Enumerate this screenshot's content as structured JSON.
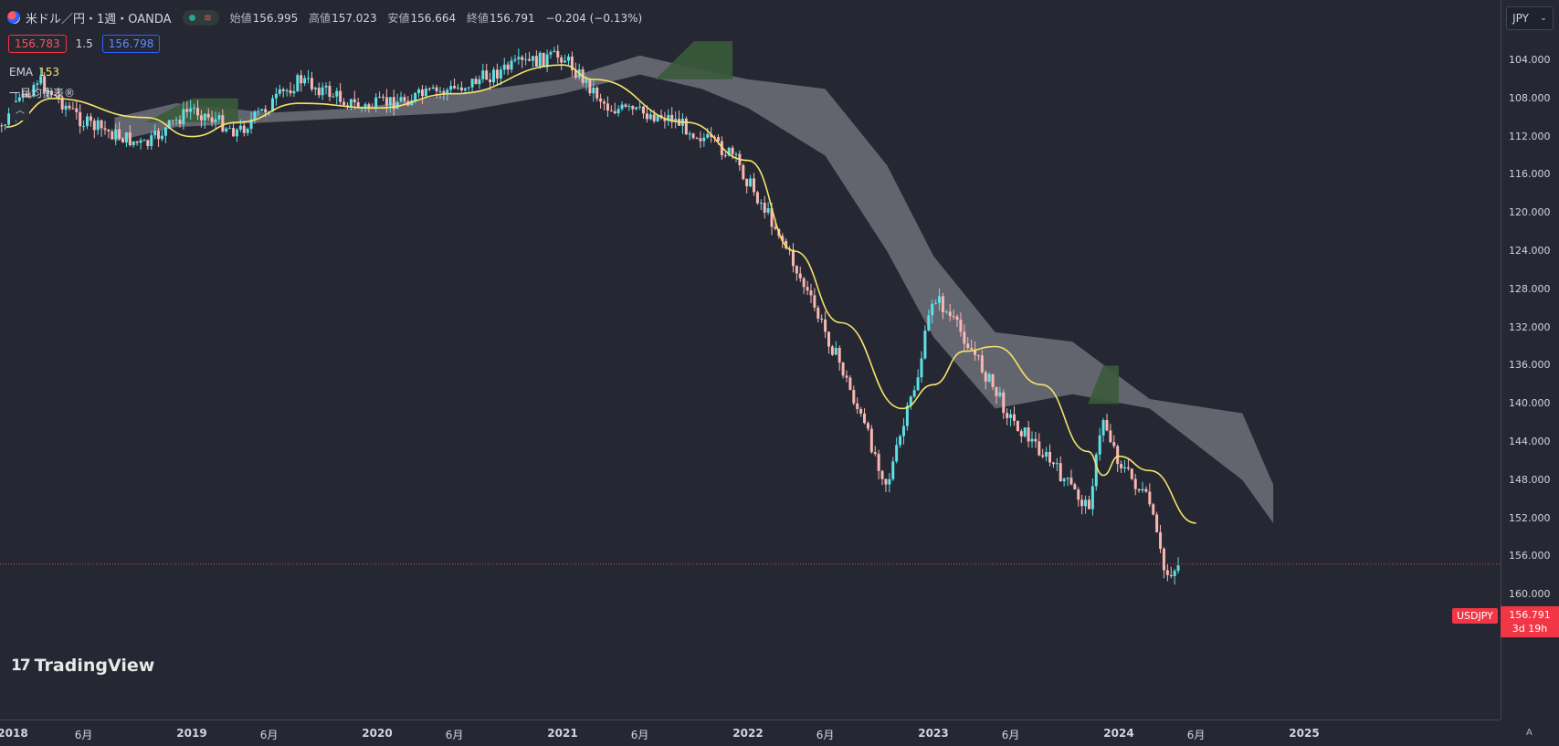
{
  "header": {
    "symbol_title": "米ドル／円・1週・OANDA",
    "ohlc": [
      {
        "label": "始値",
        "value": "156.995"
      },
      {
        "label": "高値",
        "value": "157.023"
      },
      {
        "label": "安値",
        "value": "156.664"
      },
      {
        "label": "終値",
        "value": "156.791"
      }
    ],
    "change": "−0.204 (−0.13%)"
  },
  "quote": {
    "sell": "156.783",
    "spread": "1.5",
    "buy": "156.798"
  },
  "indicators": {
    "ema_label": "EMA",
    "ema_value": "153",
    "ichimoku_label": "一目均衡表®"
  },
  "collapse_icon": "chevron-up-icon",
  "currency_selector": {
    "label": "JPY",
    "icon": "chevron-down-icon"
  },
  "brand": {
    "logo_mark": "17",
    "name": "TradingView"
  },
  "price_badge": {
    "symbol": "USDJPY",
    "price": "156.791",
    "countdown": "3d 19h"
  },
  "axis_mode_label": "A",
  "colors": {
    "background": "#252833",
    "candle_up": "#f8b7b3",
    "candle_down": "#5de0e6",
    "ema": "#f7e26b",
    "cloud_bull": "#3a5a3a",
    "cloud_bear": "#6e7079",
    "last_price": "#f23645"
  },
  "chart_data": {
    "type": "candlestick",
    "title": "米ドル／円・1週・OANDA",
    "price_axis": {
      "inverted": true,
      "ticks": [
        "104.000",
        "108.000",
        "112.000",
        "116.000",
        "120.000",
        "124.000",
        "128.000",
        "132.000",
        "136.000",
        "140.000",
        "144.000",
        "148.000",
        "152.000",
        "156.000",
        "160.000"
      ]
    },
    "time_axis": {
      "ticks": [
        {
          "label": "2018",
          "date": "2018-01",
          "bold": true
        },
        {
          "label": "6月",
          "date": "2018-06"
        },
        {
          "label": "2019",
          "date": "2019-01",
          "bold": true
        },
        {
          "label": "6月",
          "date": "2019-06"
        },
        {
          "label": "2020",
          "date": "2020-01",
          "bold": true
        },
        {
          "label": "6月",
          "date": "2020-06"
        },
        {
          "label": "2021",
          "date": "2021-01",
          "bold": true
        },
        {
          "label": "6月",
          "date": "2021-06"
        },
        {
          "label": "2022",
          "date": "2022-01",
          "bold": true
        },
        {
          "label": "6月",
          "date": "2022-06"
        },
        {
          "label": "2023",
          "date": "2023-01",
          "bold": true
        },
        {
          "label": "6月",
          "date": "2023-06"
        },
        {
          "label": "2024",
          "date": "2024-01",
          "bold": true
        },
        {
          "label": "6月",
          "date": "2024-06"
        },
        {
          "label": "2025",
          "date": "2025-01",
          "bold": true
        }
      ]
    },
    "price_path": [
      {
        "date": "2017-12",
        "price": 112.5
      },
      {
        "date": "2018-03",
        "price": 106.0
      },
      {
        "date": "2018-06",
        "price": 110.5
      },
      {
        "date": "2018-10",
        "price": 113.0
      },
      {
        "date": "2019-01",
        "price": 109.0
      },
      {
        "date": "2019-04",
        "price": 111.5
      },
      {
        "date": "2019-08",
        "price": 106.0
      },
      {
        "date": "2019-12",
        "price": 109.0
      },
      {
        "date": "2020-03",
        "price": 108.0
      },
      {
        "date": "2020-06",
        "price": 107.0
      },
      {
        "date": "2020-10",
        "price": 104.5
      },
      {
        "date": "2021-01",
        "price": 103.5
      },
      {
        "date": "2021-04",
        "price": 109.0
      },
      {
        "date": "2021-08",
        "price": 110.0
      },
      {
        "date": "2021-12",
        "price": 114.0
      },
      {
        "date": "2022-03",
        "price": 122.0
      },
      {
        "date": "2022-05",
        "price": 129.0
      },
      {
        "date": "2022-07",
        "price": 136.0
      },
      {
        "date": "2022-10",
        "price": 148.5
      },
      {
        "date": "2022-12",
        "price": 137.0
      },
      {
        "date": "2023-01",
        "price": 128.5
      },
      {
        "date": "2023-03",
        "price": 133.0
      },
      {
        "date": "2023-06",
        "price": 141.5
      },
      {
        "date": "2023-08",
        "price": 145.0
      },
      {
        "date": "2023-11",
        "price": 151.0
      },
      {
        "date": "2023-12",
        "price": 141.5
      },
      {
        "date": "2024-01",
        "price": 146.0
      },
      {
        "date": "2024-03",
        "price": 150.5
      },
      {
        "date": "2024-04",
        "price": 158.0
      },
      {
        "date": "2024-05",
        "price": 156.8
      }
    ],
    "ema": {
      "name": "EMA",
      "period": 153,
      "points": [
        {
          "date": "2018-01",
          "price": 111.0
        },
        {
          "date": "2018-04",
          "price": 108.0
        },
        {
          "date": "2018-10",
          "price": 110.0
        },
        {
          "date": "2019-01",
          "price": 112.0
        },
        {
          "date": "2019-04",
          "price": 110.5
        },
        {
          "date": "2019-08",
          "price": 108.5
        },
        {
          "date": "2020-01",
          "price": 109.0
        },
        {
          "date": "2020-06",
          "price": 107.5
        },
        {
          "date": "2021-01",
          "price": 104.5
        },
        {
          "date": "2021-03",
          "price": 106.0
        },
        {
          "date": "2021-09",
          "price": 110.5
        },
        {
          "date": "2022-01",
          "price": 114.5
        },
        {
          "date": "2022-04",
          "price": 124.0
        },
        {
          "date": "2022-07",
          "price": 131.5
        },
        {
          "date": "2022-11",
          "price": 140.5
        },
        {
          "date": "2023-01",
          "price": 138.0
        },
        {
          "date": "2023-03",
          "price": 134.5
        },
        {
          "date": "2023-05",
          "price": 134.0
        },
        {
          "date": "2023-08",
          "price": 138.0
        },
        {
          "date": "2023-11",
          "price": 145.0
        },
        {
          "date": "2023-12",
          "price": 147.5
        },
        {
          "date": "2024-01",
          "price": 145.5
        },
        {
          "date": "2024-03",
          "price": 147.0
        },
        {
          "date": "2024-06",
          "price": 152.5
        }
      ]
    },
    "ichimoku_cloud": {
      "name": "一目均衡表",
      "upper": [
        {
          "date": "2018-08",
          "price": 110.0
        },
        {
          "date": "2018-12",
          "price": 108.5
        },
        {
          "date": "2019-06",
          "price": 109.5
        },
        {
          "date": "2019-12",
          "price": 109.0
        },
        {
          "date": "2020-06",
          "price": 107.5
        },
        {
          "date": "2021-01",
          "price": 106.0
        },
        {
          "date": "2021-06",
          "price": 103.5
        },
        {
          "date": "2021-10",
          "price": 105.0
        },
        {
          "date": "2022-01",
          "price": 106.0
        },
        {
          "date": "2022-06",
          "price": 107.0
        },
        {
          "date": "2022-10",
          "price": 115.0
        },
        {
          "date": "2023-01",
          "price": 124.5
        },
        {
          "date": "2023-05",
          "price": 132.5
        },
        {
          "date": "2023-10",
          "price": 133.5
        },
        {
          "date": "2024-03",
          "price": 139.5
        },
        {
          "date": "2024-09",
          "price": 141.0
        },
        {
          "date": "2024-11",
          "price": 148.5
        }
      ],
      "lower": [
        {
          "date": "2018-08",
          "price": 112.5
        },
        {
          "date": "2018-12",
          "price": 111.0
        },
        {
          "date": "2019-06",
          "price": 110.5
        },
        {
          "date": "2019-12",
          "price": 110.0
        },
        {
          "date": "2020-06",
          "price": 109.5
        },
        {
          "date": "2021-01",
          "price": 107.5
        },
        {
          "date": "2021-06",
          "price": 105.5
        },
        {
          "date": "2021-10",
          "price": 107.0
        },
        {
          "date": "2022-01",
          "price": 109.0
        },
        {
          "date": "2022-06",
          "price": 114.0
        },
        {
          "date": "2022-10",
          "price": 124.0
        },
        {
          "date": "2023-01",
          "price": 133.0
        },
        {
          "date": "2023-05",
          "price": 140.5
        },
        {
          "date": "2023-10",
          "price": 139.0
        },
        {
          "date": "2024-03",
          "price": 140.5
        },
        {
          "date": "2024-09",
          "price": 148.0
        },
        {
          "date": "2024-11",
          "price": 152.5
        }
      ]
    },
    "last_price": 156.791
  }
}
